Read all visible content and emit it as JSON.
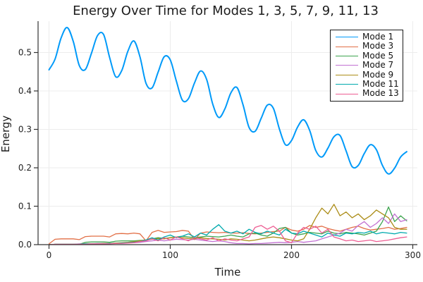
{
  "chart_data": {
    "type": "line",
    "title": "Energy Over Time for Modes 1, 3, 5, 7, 9, 11, 13",
    "xlabel": "Time",
    "ylabel": "Energy",
    "xlim": [
      -9,
      304
    ],
    "ylim": [
      0,
      0.582
    ],
    "grid": true,
    "legend_position": "top-right",
    "x_ticks": [
      0,
      100,
      200,
      300
    ],
    "x_tick_labels": [
      "0",
      "100",
      "200",
      "300"
    ],
    "y_ticks": [
      0.0,
      0.1,
      0.2,
      0.3,
      0.4,
      0.5
    ],
    "y_tick_labels": [
      "0.0",
      "0.1",
      "0.2",
      "0.3",
      "0.4",
      "0.5"
    ],
    "x": [
      0,
      5,
      10,
      15,
      20,
      25,
      30,
      35,
      40,
      45,
      50,
      55,
      60,
      65,
      70,
      75,
      80,
      85,
      90,
      95,
      100,
      105,
      110,
      115,
      120,
      125,
      130,
      135,
      140,
      145,
      150,
      155,
      160,
      165,
      170,
      175,
      180,
      185,
      190,
      195,
      200,
      205,
      210,
      215,
      220,
      225,
      230,
      235,
      240,
      245,
      250,
      255,
      260,
      265,
      270,
      275,
      280,
      285,
      290,
      295
    ],
    "series": [
      {
        "name": "Mode 1",
        "color": "#009af9",
        "width": 2.0,
        "smooth": true,
        "values": [
          0.455,
          0.483,
          0.538,
          0.565,
          0.529,
          0.466,
          0.456,
          0.498,
          0.544,
          0.547,
          0.487,
          0.437,
          0.453,
          0.503,
          0.53,
          0.489,
          0.42,
          0.408,
          0.449,
          0.489,
          0.481,
          0.426,
          0.376,
          0.38,
          0.421,
          0.452,
          0.43,
          0.366,
          0.331,
          0.353,
          0.395,
          0.409,
          0.364,
          0.305,
          0.295,
          0.329,
          0.363,
          0.355,
          0.301,
          0.26,
          0.271,
          0.306,
          0.325,
          0.297,
          0.245,
          0.228,
          0.251,
          0.281,
          0.284,
          0.244,
          0.203,
          0.206,
          0.237,
          0.26,
          0.247,
          0.206,
          0.184,
          0.199,
          0.228,
          0.242
        ]
      },
      {
        "name": "Mode 3",
        "color": "#e26f46",
        "width": 1.3,
        "smooth": false,
        "values": [
          0.002,
          0.014,
          0.015,
          0.015,
          0.015,
          0.013,
          0.021,
          0.022,
          0.022,
          0.022,
          0.02,
          0.028,
          0.029,
          0.028,
          0.03,
          0.028,
          0.01,
          0.032,
          0.037,
          0.032,
          0.033,
          0.034,
          0.037,
          0.035,
          0.013,
          0.03,
          0.033,
          0.032,
          0.031,
          0.032,
          0.03,
          0.03,
          0.031,
          0.029,
          0.028,
          0.03,
          0.032,
          0.034,
          0.035,
          0.045,
          0.038,
          0.035,
          0.04,
          0.05,
          0.045,
          0.048,
          0.042,
          0.038,
          0.035,
          0.04,
          0.045,
          0.048,
          0.042,
          0.038,
          0.04,
          0.042,
          0.045,
          0.04,
          0.042,
          0.045
        ]
      },
      {
        "name": "Mode 5",
        "color": "#3da44e",
        "width": 1.3,
        "smooth": false,
        "values": [
          0.0,
          0.001,
          0.001,
          0.001,
          0.001,
          0.001,
          0.006,
          0.007,
          0.007,
          0.007,
          0.006,
          0.009,
          0.01,
          0.01,
          0.01,
          0.011,
          0.012,
          0.015,
          0.018,
          0.016,
          0.018,
          0.02,
          0.022,
          0.02,
          0.018,
          0.02,
          0.022,
          0.021,
          0.02,
          0.022,
          0.025,
          0.022,
          0.02,
          0.028,
          0.03,
          0.025,
          0.022,
          0.03,
          0.042,
          0.045,
          0.03,
          0.025,
          0.028,
          0.032,
          0.03,
          0.028,
          0.035,
          0.03,
          0.028,
          0.032,
          0.03,
          0.028,
          0.025,
          0.03,
          0.035,
          0.06,
          0.098,
          0.06,
          0.075,
          0.062
        ]
      },
      {
        "name": "Mode 7",
        "color": "#c271d2",
        "width": 1.3,
        "smooth": false,
        "values": [
          0.0,
          0.001,
          0.001,
          0.001,
          0.001,
          0.002,
          0.002,
          0.002,
          0.003,
          0.003,
          0.003,
          0.004,
          0.004,
          0.005,
          0.005,
          0.006,
          0.008,
          0.01,
          0.012,
          0.01,
          0.012,
          0.014,
          0.013,
          0.012,
          0.014,
          0.012,
          0.01,
          0.008,
          0.01,
          0.008,
          0.005,
          0.003,
          0.003,
          0.002,
          0.003,
          0.003,
          0.004,
          0.005,
          0.006,
          0.005,
          0.006,
          0.008,
          0.006,
          0.008,
          0.01,
          0.015,
          0.02,
          0.025,
          0.03,
          0.04,
          0.035,
          0.05,
          0.06,
          0.045,
          0.055,
          0.07,
          0.055,
          0.08,
          0.06,
          0.065
        ]
      },
      {
        "name": "Mode 9",
        "color": "#ac8d18",
        "width": 1.3,
        "smooth": false,
        "values": [
          0.0,
          0.001,
          0.001,
          0.001,
          0.001,
          0.001,
          0.002,
          0.002,
          0.002,
          0.003,
          0.003,
          0.004,
          0.005,
          0.006,
          0.008,
          0.01,
          0.012,
          0.014,
          0.016,
          0.015,
          0.018,
          0.02,
          0.018,
          0.016,
          0.015,
          0.018,
          0.016,
          0.015,
          0.014,
          0.012,
          0.015,
          0.014,
          0.012,
          0.01,
          0.012,
          0.015,
          0.018,
          0.02,
          0.018,
          0.015,
          0.012,
          0.01,
          0.015,
          0.04,
          0.07,
          0.095,
          0.08,
          0.105,
          0.075,
          0.085,
          0.07,
          0.08,
          0.065,
          0.075,
          0.09,
          0.08,
          0.07,
          0.045,
          0.04,
          0.04
        ]
      },
      {
        "name": "Mode 11",
        "color": "#00aaae",
        "width": 1.3,
        "smooth": false,
        "values": [
          0.0,
          0.001,
          0.001,
          0.001,
          0.001,
          0.001,
          0.002,
          0.002,
          0.002,
          0.002,
          0.003,
          0.003,
          0.004,
          0.005,
          0.006,
          0.008,
          0.012,
          0.018,
          0.012,
          0.02,
          0.025,
          0.018,
          0.022,
          0.028,
          0.02,
          0.03,
          0.025,
          0.04,
          0.052,
          0.035,
          0.03,
          0.035,
          0.028,
          0.04,
          0.032,
          0.028,
          0.035,
          0.03,
          0.025,
          0.04,
          0.03,
          0.028,
          0.035,
          0.03,
          0.025,
          0.02,
          0.03,
          0.025,
          0.022,
          0.03,
          0.028,
          0.032,
          0.03,
          0.035,
          0.028,
          0.032,
          0.03,
          0.028,
          0.032,
          0.03
        ]
      },
      {
        "name": "Mode 13",
        "color": "#ed5e93",
        "width": 1.3,
        "smooth": false,
        "values": [
          0.0,
          0.001,
          0.001,
          0.001,
          0.001,
          0.001,
          0.001,
          0.002,
          0.002,
          0.002,
          0.002,
          0.003,
          0.003,
          0.004,
          0.005,
          0.008,
          0.01,
          0.015,
          0.01,
          0.018,
          0.012,
          0.02,
          0.015,
          0.01,
          0.018,
          0.015,
          0.012,
          0.018,
          0.01,
          0.015,
          0.012,
          0.01,
          0.015,
          0.02,
          0.045,
          0.05,
          0.04,
          0.048,
          0.035,
          0.01,
          0.005,
          0.03,
          0.045,
          0.04,
          0.048,
          0.03,
          0.04,
          0.02,
          0.015,
          0.01,
          0.012,
          0.008,
          0.01,
          0.012,
          0.008,
          0.01,
          0.012,
          0.015,
          0.018,
          0.02
        ]
      }
    ]
  },
  "style": {
    "grid_color": "#ececec",
    "axis_color": "#333333",
    "tick_label_color": "#1f1f1f",
    "background": "#ffffff"
  }
}
